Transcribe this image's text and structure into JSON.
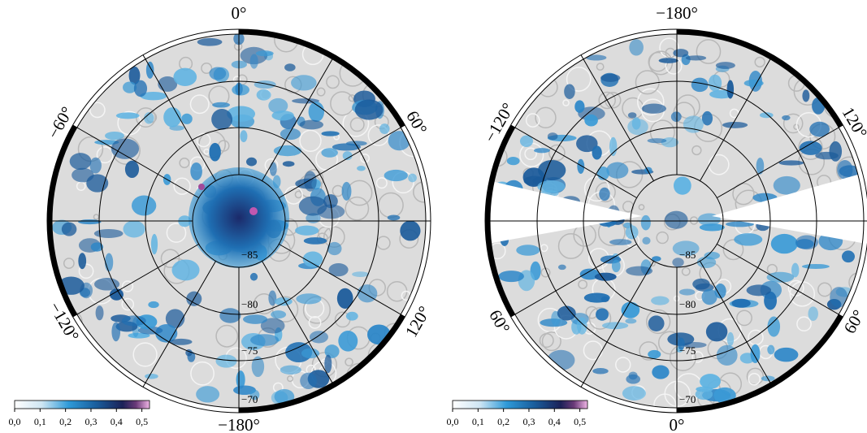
{
  "maps": [
    {
      "lon_labels": [
        "0°",
        "60°",
        "120°",
        "−180°",
        "−120°",
        "−60°"
      ],
      "lat_labels": [
        "−85",
        "−80",
        "−75",
        "−70"
      ],
      "colorbar": {
        "ticks": [
          "0,0",
          "0,1",
          "0,2",
          "0,3",
          "0,4",
          "0,5"
        ]
      }
    },
    {
      "lon_labels": [
        "−180°",
        "120°",
        "60°",
        "0°",
        "60°",
        "−120°"
      ],
      "lat_labels": [
        "−85",
        "−80",
        "−75",
        "−70"
      ],
      "colorbar": {
        "ticks": [
          "0,0",
          "0,1",
          "0,2",
          "0,3",
          "0,4",
          "0,5"
        ]
      }
    }
  ]
}
